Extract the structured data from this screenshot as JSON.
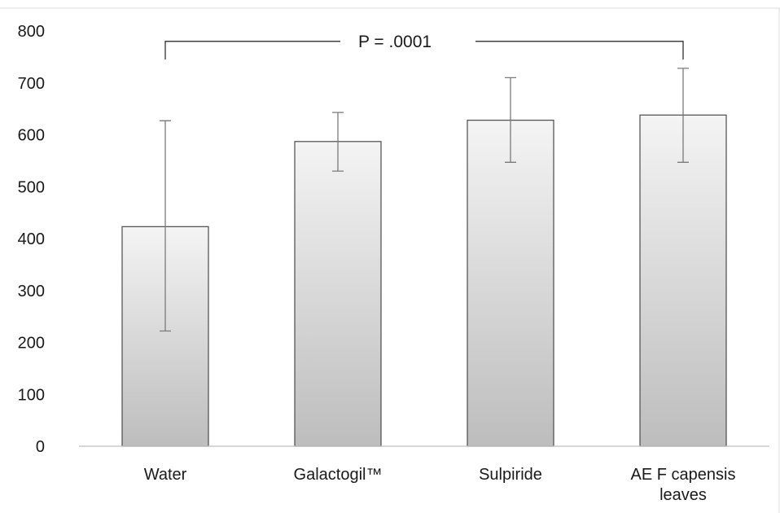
{
  "chart_data": {
    "type": "bar",
    "categories": [
      "Water",
      "Galactogil™",
      "Sulpiride",
      "AE F capensis leaves"
    ],
    "category_lines": [
      [
        "Water"
      ],
      [
        "Galactogil™"
      ],
      [
        "Sulpiride"
      ],
      [
        "AE F capensis",
        "leaves"
      ]
    ],
    "values": [
      423,
      587,
      628,
      638
    ],
    "error_upper": [
      627,
      643,
      710,
      728
    ],
    "error_lower": [
      222,
      530,
      547,
      547
    ],
    "ylim": [
      0,
      800
    ],
    "yticks": [
      0,
      100,
      200,
      300,
      400,
      500,
      600,
      700,
      800
    ],
    "grid": false,
    "legend": "none",
    "annotation": {
      "text": "P = .0001",
      "from_category": 0,
      "to_category": 3,
      "y": 780,
      "drop_to": 745
    },
    "colors": {
      "bar_top": "#f4f4f4",
      "bar_bottom": "#bdbdbd",
      "bar_edge": "#4a4a4a",
      "error_bar": "#7a7a7a",
      "axis": "#bfbfbf"
    }
  }
}
